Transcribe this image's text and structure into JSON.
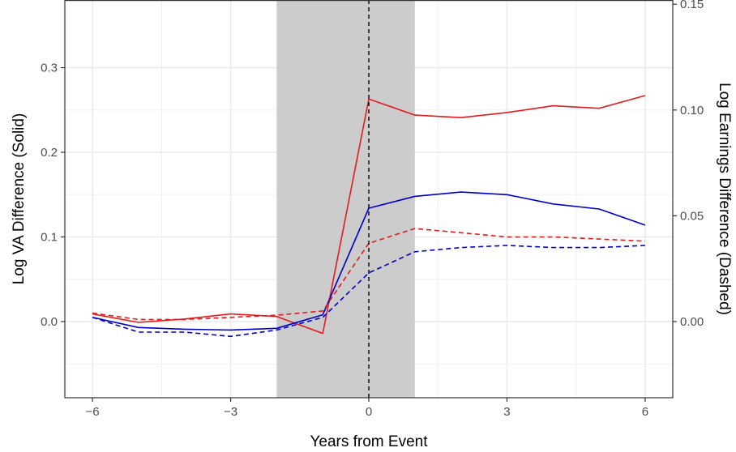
{
  "chart_data": {
    "type": "line",
    "xlabel": "Years from Event",
    "ylabel": "Log VA Difference (Solid)",
    "ylabel_right": "Log Earnings Difference (Dashed)",
    "xlim": [
      -6.6,
      6.6
    ],
    "ylim": [
      -0.09,
      0.38
    ],
    "ylim_right": [
      -0.036,
      0.152
    ],
    "x_ticks": [
      -6,
      -3,
      0,
      3,
      6
    ],
    "x_tick_labels": [
      "−6",
      "−3",
      "0",
      "3",
      "6"
    ],
    "y_ticks": [
      0.0,
      0.1,
      0.2,
      0.3
    ],
    "y_tick_labels": [
      "0.0",
      "0.1",
      "0.2",
      "0.3"
    ],
    "y_ticks_right": [
      0.0,
      0.05,
      0.1,
      0.15
    ],
    "y_tick_labels_right": [
      "0.00",
      "0.05",
      "0.10",
      "0.15"
    ],
    "grid": true,
    "shaded_region": {
      "x_start": -2,
      "x_end": 1,
      "color": "#cccccc"
    },
    "vline": {
      "x": 0,
      "style": "dashed",
      "color": "#000000"
    },
    "x": [
      -6,
      -5,
      -4,
      -3,
      -2,
      -1,
      0,
      1,
      2,
      3,
      4,
      5,
      6
    ],
    "series": [
      {
        "axis": "left",
        "style": "solid",
        "color": "#e41a1c",
        "values": [
          0.009,
          -0.001,
          0.003,
          0.009,
          0.006,
          -0.014,
          0.263,
          0.244,
          0.241,
          0.247,
          0.255,
          0.252,
          0.267
        ]
      },
      {
        "axis": "left",
        "style": "solid",
        "color": "#0000cc",
        "values": [
          0.005,
          -0.007,
          -0.009,
          -0.01,
          -0.008,
          0.008,
          0.134,
          0.148,
          0.153,
          0.15,
          0.139,
          0.133,
          0.114
        ]
      },
      {
        "axis": "right",
        "style": "dashed",
        "color": "#e41a1c",
        "values": [
          0.004,
          0.001,
          0.001,
          0.002,
          0.003,
          0.005,
          0.037,
          0.044,
          0.042,
          0.04,
          0.04,
          0.039,
          0.038
        ]
      },
      {
        "axis": "right",
        "style": "dashed",
        "color": "#0000cc",
        "values": [
          0.002,
          -0.005,
          -0.005,
          -0.007,
          -0.004,
          0.002,
          0.023,
          0.033,
          0.035,
          0.036,
          0.035,
          0.035,
          0.036
        ]
      }
    ]
  }
}
